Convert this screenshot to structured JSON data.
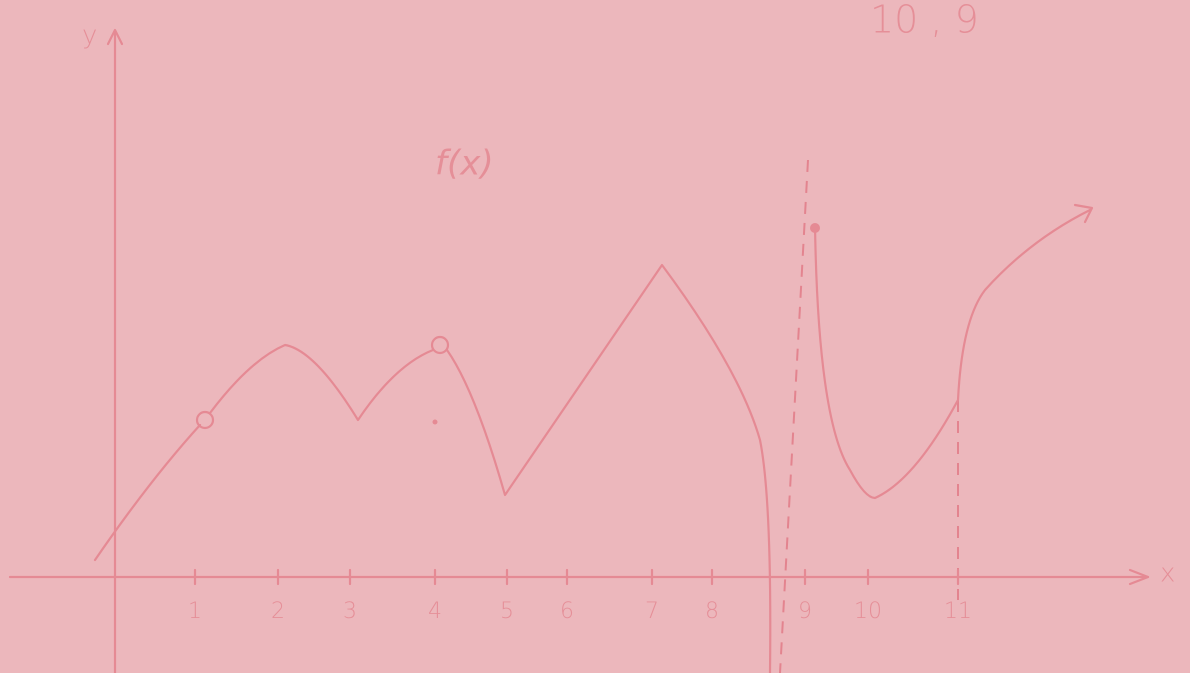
{
  "axes": {
    "y_label": "y",
    "x_label": "x"
  },
  "function_label": "f(x)",
  "note": "10 , 9",
  "x_tick_labels": [
    "1",
    "2",
    "3",
    "4",
    "5",
    "6",
    "7",
    "8",
    "9",
    "10",
    "11"
  ]
}
